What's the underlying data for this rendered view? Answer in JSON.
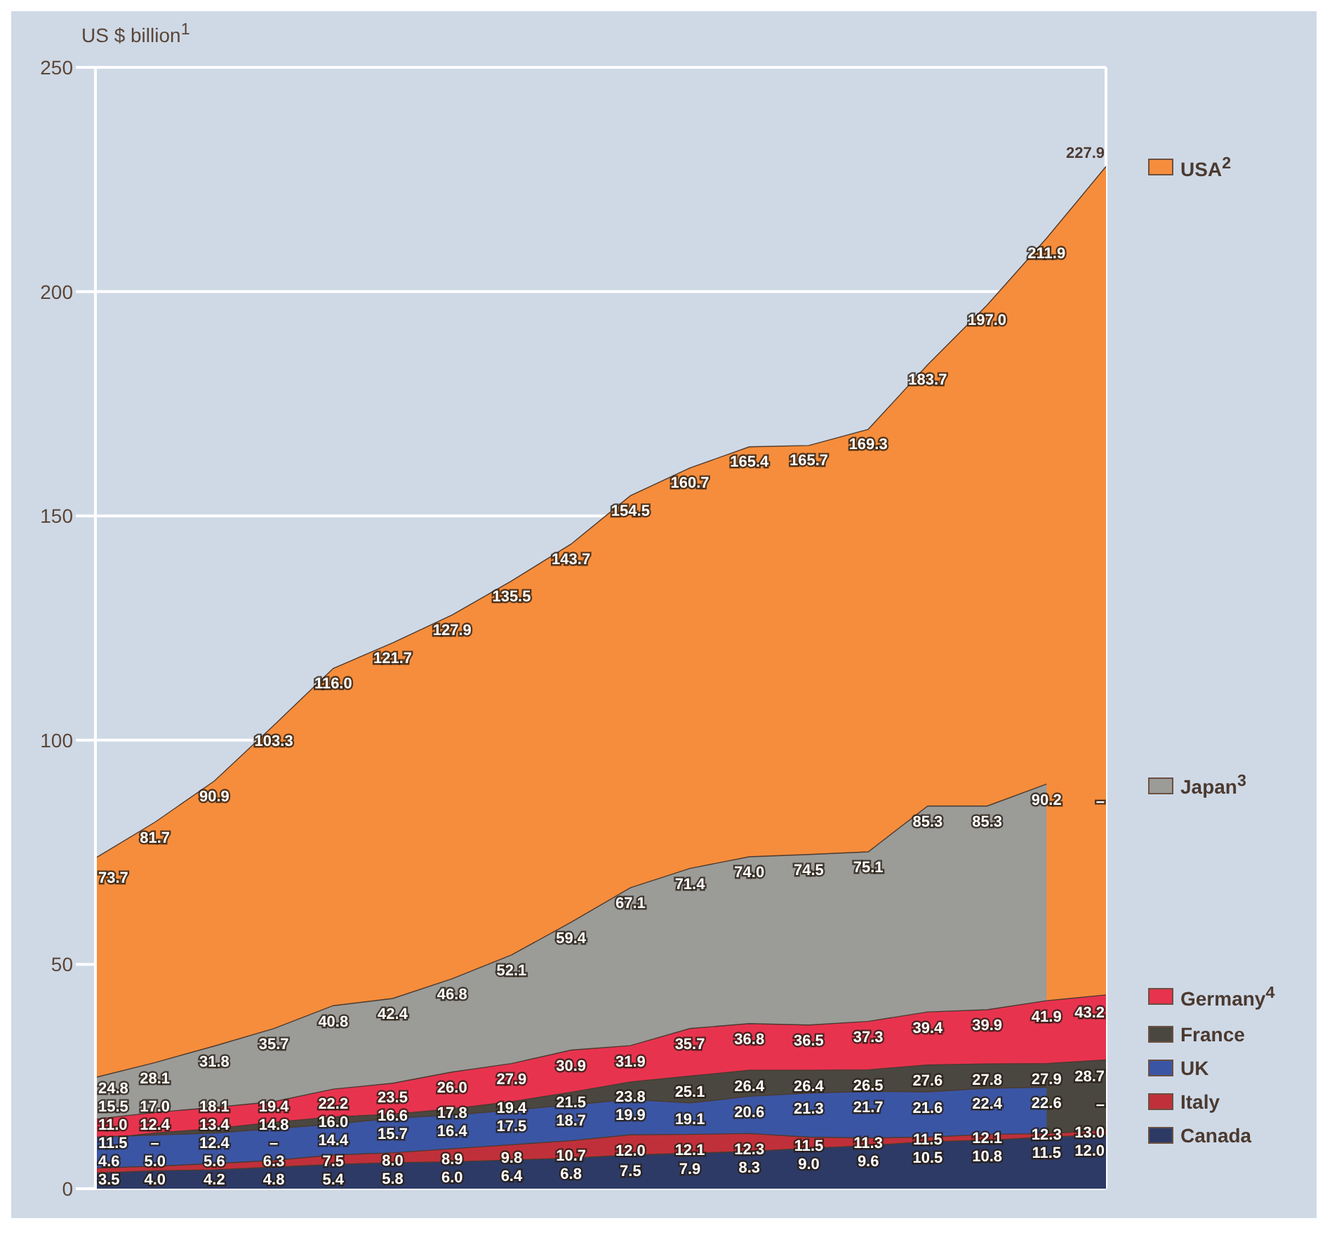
{
  "chart_data": {
    "type": "area",
    "ylabel": "US $ billion$^{1}$",
    "categories": [
      null,
      null,
      null,
      null,
      null,
      null,
      null,
      null,
      null,
      null,
      null,
      null,
      null,
      null,
      null,
      null,
      null,
      null
    ],
    "ylim": [
      0,
      250
    ],
    "yticks": [
      0,
      50,
      100,
      150,
      200,
      250
    ],
    "grid": true,
    "legend": "right",
    "tick_labels": "y",
    "series": [
      {
        "name": "USA$^{2}$",
        "color": "#f68d3c",
        "values": [
          73.7,
          81.7,
          90.9,
          103.3,
          116.0,
          121.7,
          127.9,
          135.5,
          143.7,
          154.5,
          160.7,
          165.4,
          165.7,
          169.3,
          183.7,
          197.0,
          211.9,
          227.9
        ],
        "value_labels": [
          "73.7",
          "81.7",
          "90.9",
          "103.3",
          "116.0",
          "121.7",
          "127.9",
          "135.5",
          "143.7",
          "154.5",
          "160.7",
          "165.4",
          "165.7",
          "169.3",
          "183.7",
          "197.0",
          "211.9",
          "227.9"
        ]
      },
      {
        "name": "Japan$^{3}$",
        "color": "#9b9b98",
        "values": [
          24.8,
          28.1,
          31.8,
          35.7,
          40.8,
          42.4,
          46.8,
          52.1,
          59.4,
          67.1,
          71.4,
          74.0,
          74.5,
          75.1,
          85.3,
          85.3,
          90.2,
          null
        ],
        "value_labels": [
          "24.8",
          "28.1",
          "31.8",
          "35.7",
          "40.8",
          "42.4",
          "46.8",
          "52.1",
          "59.4",
          "67.1",
          "71.4",
          "74.0",
          "74.5",
          "75.1",
          "85.3",
          "85.3",
          "90.2",
          "–"
        ]
      },
      {
        "name": "Germany$^{4}$",
        "color": "#e8334f",
        "values": [
          15.5,
          17.0,
          18.1,
          19.4,
          22.2,
          23.5,
          26.0,
          27.9,
          30.9,
          31.9,
          35.7,
          36.8,
          36.5,
          37.3,
          39.4,
          39.9,
          41.9,
          43.2
        ],
        "value_labels": [
          "15.5",
          "17.0",
          "18.1",
          "19.4",
          "22.2",
          "23.5",
          "26.0",
          "27.9",
          "30.9",
          "31.9",
          "35.7",
          "36.8",
          "36.5",
          "37.3",
          "39.4",
          "39.9",
          "41.9",
          "43.2"
        ]
      },
      {
        "name": "France",
        "color": "#4a4740",
        "values": [
          11.0,
          12.4,
          13.4,
          14.8,
          16.0,
          16.6,
          17.8,
          19.4,
          21.5,
          23.8,
          25.1,
          26.4,
          26.4,
          26.5,
          27.6,
          27.8,
          27.9,
          28.7
        ],
        "value_labels": [
          "11.0",
          "12.4",
          "13.4",
          "14.8",
          "16.0",
          "16.6",
          "17.8",
          "19.4",
          "21.5",
          "23.8",
          "25.1",
          "26.4",
          "26.4",
          "26.5",
          "27.6",
          "27.8",
          "27.9",
          "28.7"
        ]
      },
      {
        "name": "UK",
        "color": "#3b55a5",
        "values": [
          11.5,
          null,
          12.4,
          null,
          14.4,
          15.7,
          16.4,
          17.5,
          18.7,
          19.9,
          19.1,
          20.6,
          21.3,
          21.7,
          21.6,
          22.4,
          22.6,
          null
        ],
        "value_labels": [
          "11.5",
          "–",
          "12.4",
          "–",
          "14.4",
          "15.7",
          "16.4",
          "17.5",
          "18.7",
          "19.9",
          "19.1",
          "20.6",
          "21.3",
          "21.7",
          "21.6",
          "22.4",
          "22.6",
          "–"
        ]
      },
      {
        "name": "Italy",
        "color": "#c0303a",
        "values": [
          4.6,
          5.0,
          5.6,
          6.3,
          7.5,
          8.0,
          8.9,
          9.8,
          10.7,
          12.0,
          12.1,
          12.3,
          11.5,
          11.3,
          11.5,
          12.1,
          12.3,
          13.0
        ],
        "value_labels": [
          "4.6",
          "5.0",
          "5.6",
          "6.3",
          "7.5",
          "8.0",
          "8.9",
          "9.8",
          "10.7",
          "12.0",
          "12.1",
          "12.3",
          "11.5",
          "11.3",
          "11.5",
          "12.1",
          "12.3",
          "13.0"
        ]
      },
      {
        "name": "Canada",
        "color": "#2d3a66",
        "values": [
          3.5,
          4.0,
          4.2,
          4.8,
          5.4,
          5.8,
          6.0,
          6.4,
          6.8,
          7.5,
          7.9,
          8.3,
          9.0,
          9.6,
          10.5,
          10.8,
          11.5,
          12.0
        ],
        "value_labels": [
          "3.5",
          "4.0",
          "4.2",
          "4.8",
          "5.4",
          "5.8",
          "6.0",
          "6.4",
          "6.8",
          "7.5",
          "7.9",
          "8.3",
          "9.0",
          "9.6",
          "10.5",
          "10.8",
          "11.5",
          "12.0"
        ]
      }
    ]
  }
}
